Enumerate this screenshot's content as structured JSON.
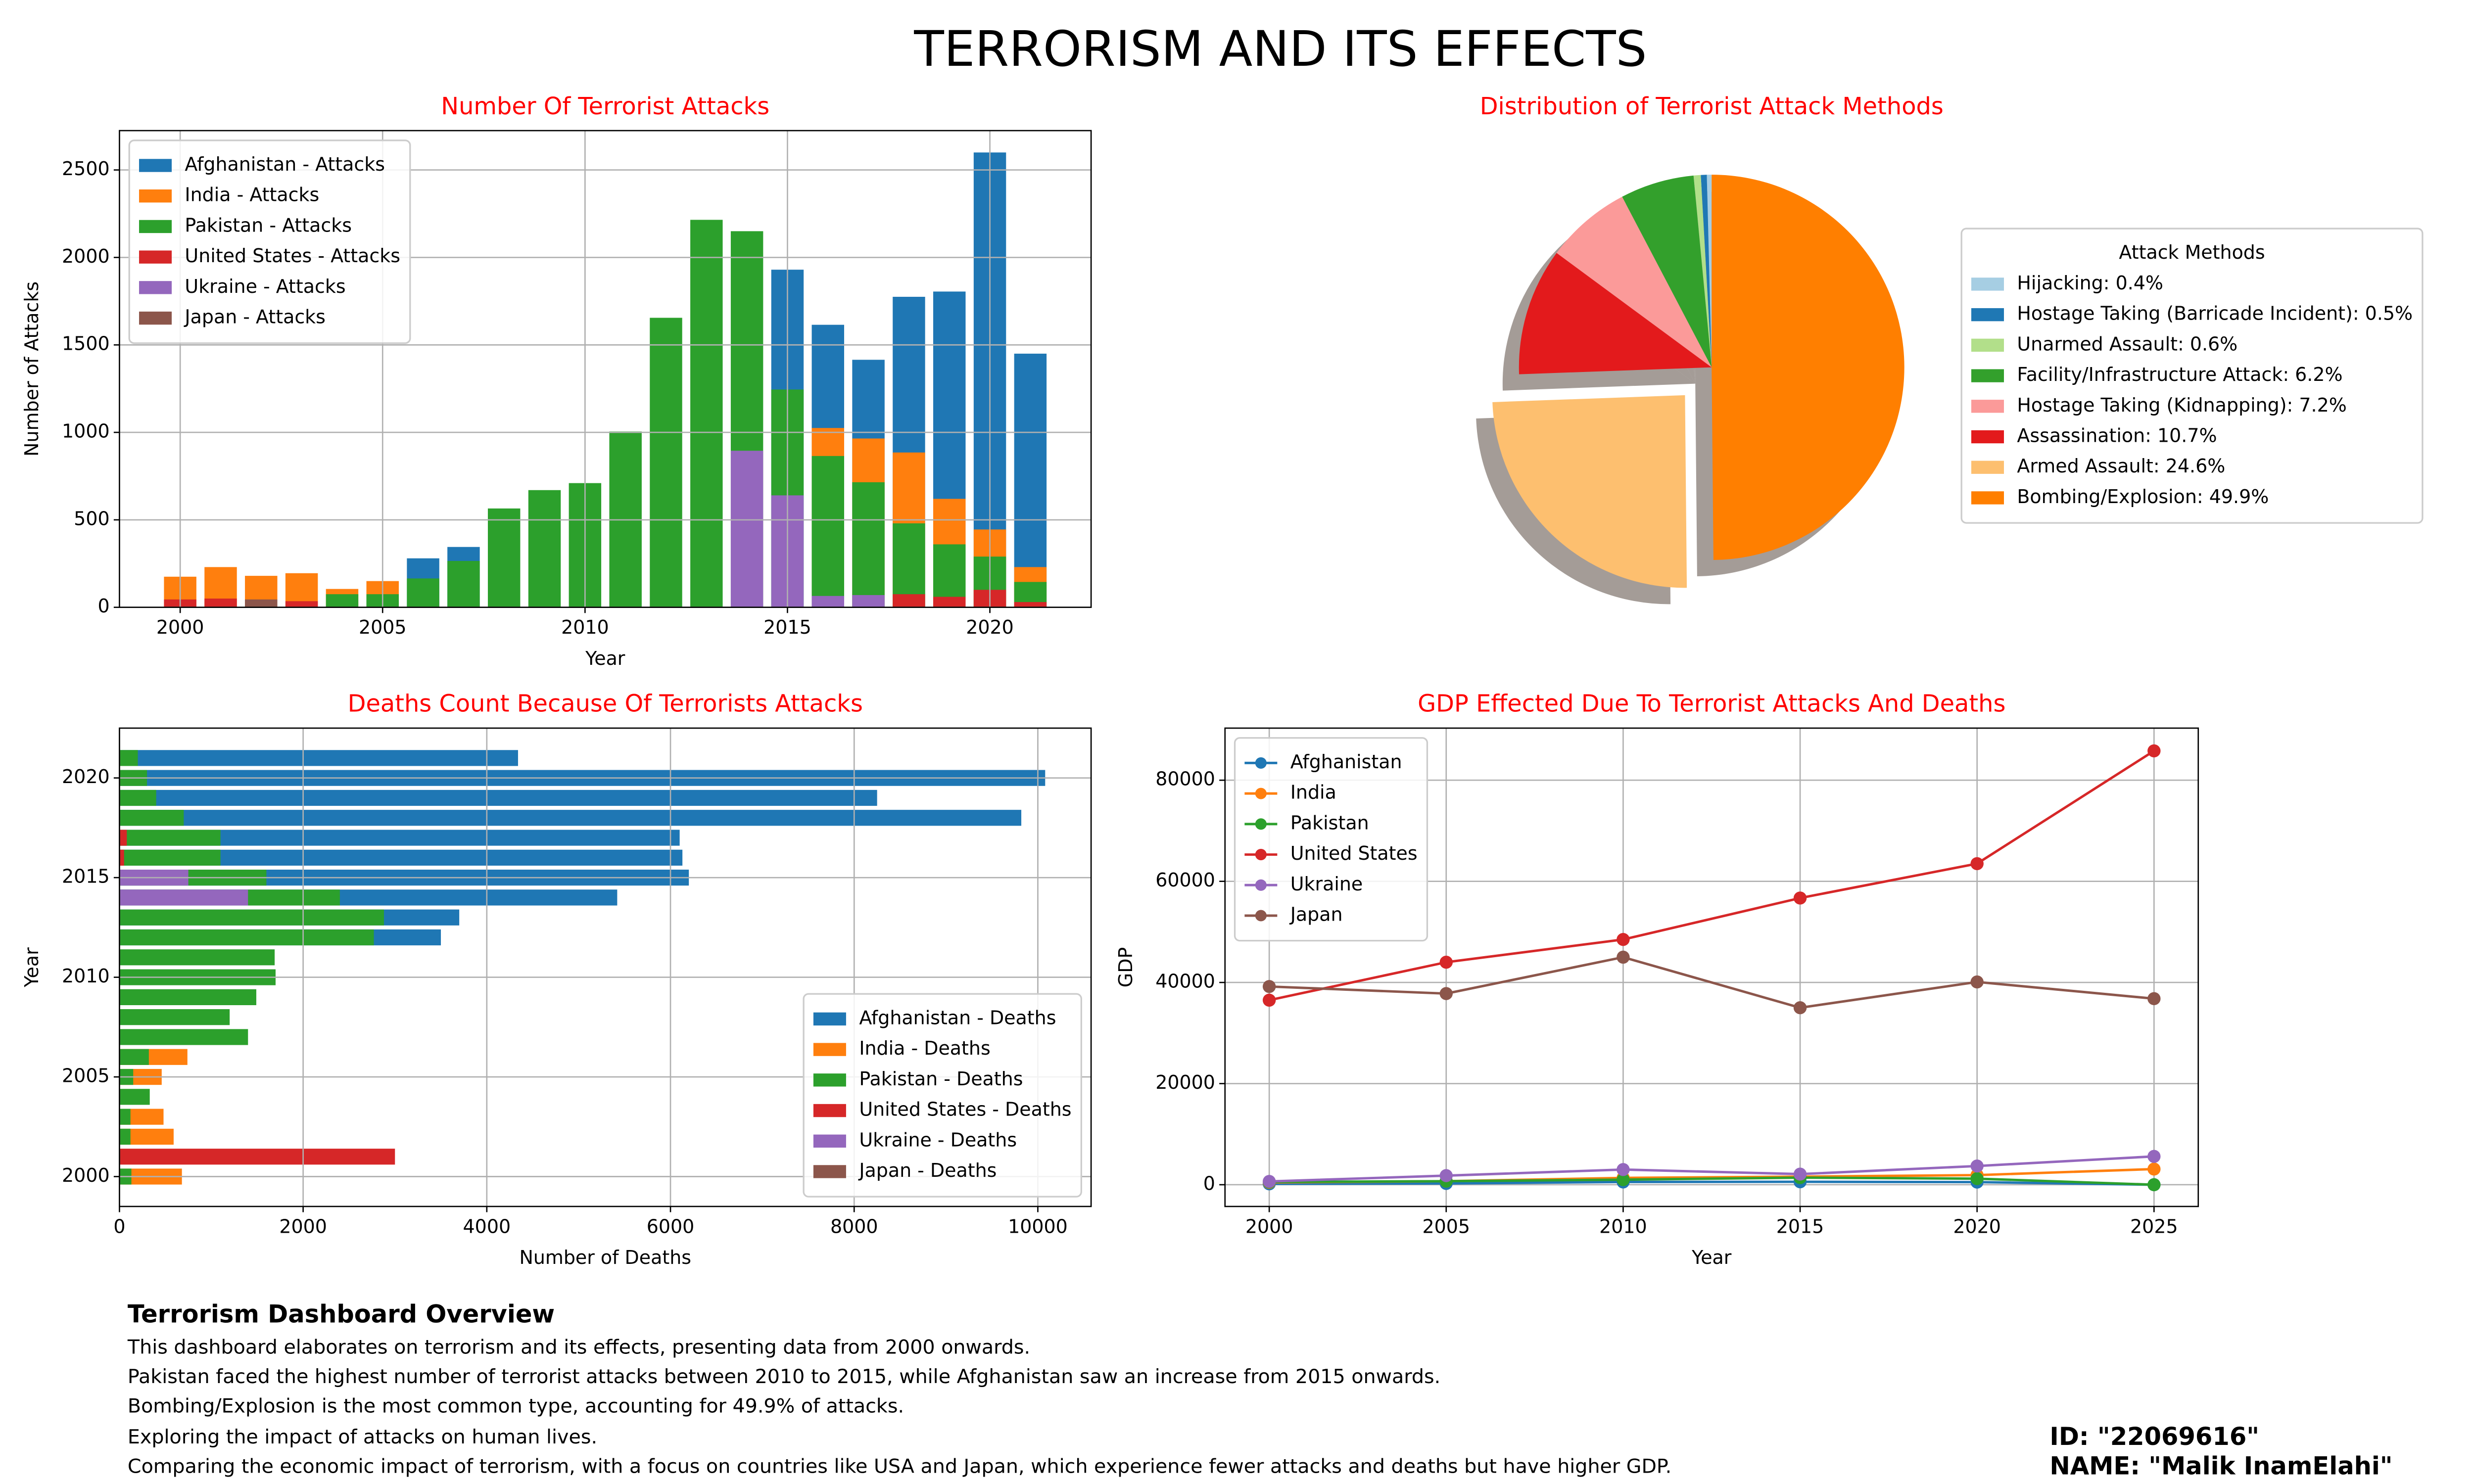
{
  "title": "TERRORISM AND ITS EFFECTS",
  "chart_data": [
    {
      "type": "bar",
      "title": "Number Of Terrorist Attacks",
      "xlabel": "Year",
      "ylabel": "Number of Attacks",
      "x": [
        2000,
        2001,
        2002,
        2003,
        2004,
        2005,
        2006,
        2007,
        2008,
        2009,
        2010,
        2011,
        2012,
        2013,
        2014,
        2015,
        2016,
        2017,
        2018,
        2019,
        2020,
        2021
      ],
      "series": [
        {
          "name": "Afghanistan - Attacks",
          "color": "#1f77b4",
          "values": [
            null,
            null,
            null,
            null,
            null,
            null,
            280,
            345,
            null,
            null,
            null,
            null,
            null,
            null,
            null,
            1930,
            1615,
            1415,
            1775,
            1805,
            2600,
            1450
          ]
        },
        {
          "name": "India - Attacks",
          "color": "#ff7f0e",
          "values": [
            175,
            230,
            180,
            195,
            105,
            150,
            null,
            null,
            null,
            null,
            null,
            null,
            null,
            null,
            null,
            null,
            1025,
            965,
            885,
            620,
            445,
            230
          ]
        },
        {
          "name": "Pakistan - Attacks",
          "color": "#2ca02c",
          "values": [
            null,
            null,
            null,
            null,
            75,
            75,
            165,
            265,
            565,
            670,
            710,
            1005,
            1655,
            2215,
            2150,
            1245,
            865,
            715,
            480,
            360,
            290,
            145
          ]
        },
        {
          "name": "United States - Attacks",
          "color": "#d62728",
          "values": [
            45,
            50,
            null,
            35,
            null,
            null,
            null,
            null,
            null,
            null,
            null,
            null,
            null,
            null,
            null,
            null,
            null,
            null,
            75,
            60,
            100,
            30
          ]
        },
        {
          "name": "Ukraine - Attacks",
          "color": "#9467bd",
          "values": [
            null,
            null,
            null,
            null,
            null,
            null,
            null,
            null,
            null,
            null,
            null,
            null,
            null,
            null,
            895,
            640,
            65,
            70,
            null,
            null,
            null,
            null
          ]
        },
        {
          "name": "Japan - Attacks",
          "color": "#8c564b",
          "values": [
            null,
            null,
            45,
            null,
            null,
            null,
            null,
            null,
            null,
            null,
            null,
            null,
            null,
            null,
            null,
            null,
            null,
            null,
            null,
            null,
            null,
            null
          ]
        }
      ],
      "xlim": [
        1998.5,
        2022.5
      ],
      "xticks": [
        2000,
        2005,
        2010,
        2015,
        2020
      ],
      "ylim": [
        0,
        2725
      ],
      "yticks": [
        0,
        500,
        1000,
        1500,
        2000,
        2500
      ],
      "grid": true,
      "legend": "upper left"
    },
    {
      "type": "pie",
      "title": "Distribution of Terrorist Attack Methods",
      "legend_title": "Attack Methods",
      "categories": [
        "Hijacking: 0.4%",
        "Hostage Taking (Barricade Incident): 0.5%",
        "Unarmed Assault: 0.6%",
        "Facility/Infrastructure Attack: 6.2%",
        "Hostage Taking (Kidnapping): 7.2%",
        "Assassination: 10.7%",
        "Armed Assault: 24.6%",
        "Bombing/Explosion: 49.9%"
      ],
      "values": [
        0.4,
        0.5,
        0.6,
        6.2,
        7.2,
        10.7,
        24.6,
        49.9
      ],
      "colors": [
        "#a6cee3",
        "#1f78b4",
        "#b2df8a",
        "#33a02c",
        "#fb9a99",
        "#e31a1c",
        "#fdbf6f",
        "#ff7f00"
      ],
      "explode": [
        0,
        0,
        0,
        0,
        0,
        0,
        0.2,
        0
      ],
      "startangle": 90,
      "shadow": true
    },
    {
      "type": "barh",
      "title": "Deaths Count Because Of Terrorists Attacks",
      "xlabel": "Number of Deaths",
      "ylabel": "Year",
      "y": [
        2000,
        2001,
        2002,
        2003,
        2004,
        2005,
        2006,
        2007,
        2008,
        2009,
        2010,
        2011,
        2012,
        2013,
        2014,
        2015,
        2016,
        2017,
        2018,
        2019,
        2020,
        2021
      ],
      "series": [
        {
          "name": "Afghanistan - Deaths",
          "color": "#1f77b4",
          "values": [
            null,
            null,
            null,
            null,
            null,
            null,
            null,
            null,
            null,
            null,
            null,
            null,
            3500,
            3700,
            5420,
            6200,
            6130,
            6100,
            9820,
            8250,
            10080,
            4340
          ]
        },
        {
          "name": "India - Deaths",
          "color": "#ff7f0e",
          "values": [
            680,
            null,
            590,
            480,
            null,
            460,
            740,
            null,
            null,
            null,
            null,
            null,
            null,
            null,
            null,
            null,
            null,
            null,
            null,
            null,
            null,
            null
          ]
        },
        {
          "name": "Pakistan - Deaths",
          "color": "#2ca02c",
          "values": [
            130,
            null,
            120,
            120,
            330,
            150,
            320,
            1400,
            1200,
            1490,
            1700,
            1690,
            2770,
            2880,
            2400,
            1600,
            1100,
            1100,
            700,
            400,
            300,
            200
          ]
        },
        {
          "name": "United States - Deaths",
          "color": "#d62728",
          "values": [
            null,
            3000,
            null,
            null,
            null,
            null,
            null,
            null,
            null,
            null,
            null,
            null,
            null,
            null,
            null,
            null,
            50,
            80,
            null,
            null,
            null,
            null
          ]
        },
        {
          "name": "Ukraine - Deaths",
          "color": "#9467bd",
          "values": [
            null,
            null,
            null,
            null,
            null,
            null,
            null,
            null,
            null,
            null,
            null,
            null,
            null,
            null,
            1400,
            750,
            null,
            null,
            null,
            null,
            null,
            null
          ]
        },
        {
          "name": "Japan - Deaths",
          "color": "#8c564b",
          "values": [
            null,
            null,
            null,
            null,
            null,
            null,
            null,
            null,
            null,
            null,
            null,
            null,
            null,
            null,
            null,
            null,
            null,
            null,
            null,
            null,
            null,
            null
          ]
        }
      ],
      "xlim": [
        0,
        10580
      ],
      "xticks": [
        0,
        2000,
        4000,
        6000,
        8000,
        10000
      ],
      "ylim": [
        1998.5,
        2022.5
      ],
      "yticks": [
        2000,
        2005,
        2010,
        2015,
        2020
      ],
      "grid": true,
      "legend": "lower right"
    },
    {
      "type": "line",
      "title": "GDP Effected Due To Terrorist Attacks And Deaths",
      "xlabel": "Year",
      "ylabel": "GDP",
      "x": [
        2000,
        2005,
        2010,
        2015,
        2020,
        2025
      ],
      "series": [
        {
          "name": "Afghanistan",
          "color": "#1f77b4",
          "values": [
            180,
            250,
            550,
            580,
            520,
            0
          ]
        },
        {
          "name": "India",
          "color": "#ff7f0e",
          "values": [
            450,
            700,
            1350,
            1600,
            1900,
            3100
          ]
        },
        {
          "name": "Pakistan",
          "color": "#2ca02c",
          "values": [
            550,
            700,
            1000,
            1400,
            1200,
            0
          ]
        },
        {
          "name": "United States",
          "color": "#d62728",
          "values": [
            36500,
            44000,
            48500,
            56700,
            63500,
            85800
          ]
        },
        {
          "name": "Ukraine",
          "color": "#9467bd",
          "values": [
            650,
            1800,
            3000,
            2100,
            3700,
            5600
          ]
        },
        {
          "name": "Japan",
          "color": "#8c564b",
          "values": [
            39200,
            37800,
            45000,
            35000,
            40100,
            36800
          ]
        }
      ],
      "xlim": [
        1998.75,
        2026.25
      ],
      "xticks": [
        2000,
        2005,
        2010,
        2015,
        2020,
        2025
      ],
      "ylim": [
        -4300,
        90300
      ],
      "yticks": [
        0,
        20000,
        40000,
        60000,
        80000
      ],
      "grid": true,
      "legend": "upper left"
    }
  ],
  "overview": {
    "heading": "Terrorism Dashboard Overview",
    "lines": [
      "This dashboard elaborates on terrorism and its effects, presenting data from 2000 onwards.",
      "Pakistan faced the highest number of terrorist attacks between 2010 to 2015, while Afghanistan saw an increase from 2015 onwards.",
      "Bombing/Explosion is the most common type, accounting for 49.9% of attacks.",
      "Exploring the impact of attacks on human lives.",
      "Comparing the economic impact of terrorism, with a focus on countries like USA and Japan, which experience fewer attacks and deaths but have higher GDP."
    ]
  },
  "id_label": "ID: \"22069616\"",
  "name_label": "NAME: \"Malik InamElahi\""
}
